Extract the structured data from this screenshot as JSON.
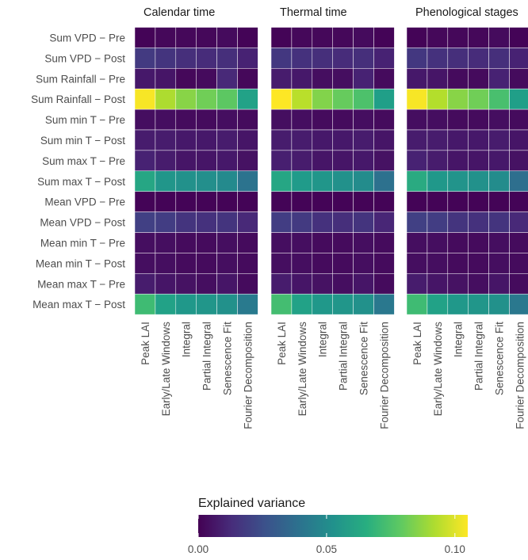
{
  "chart_data": {
    "type": "heatmap",
    "panels": [
      "Calendar time",
      "Thermal time",
      "Phenological stages"
    ],
    "rows": [
      "Sum VPD − Pre",
      "Sum VPD − Post",
      "Sum Rainfall − Pre",
      "Sum Rainfall − Post",
      "Sum min T − Pre",
      "Sum min T − Post",
      "Sum max T − Pre",
      "Sum max T − Post",
      "Mean VPD − Pre",
      "Mean VPD − Post",
      "Mean min T − Pre",
      "Mean min T − Post",
      "Mean max T − Pre",
      "Mean max T − Post"
    ],
    "columns": [
      "Peak LAI",
      "Early/Late Windows",
      "Integral",
      "Partial Integral",
      "Senescence Fit",
      "Fourier Decomposition"
    ],
    "values": [
      [
        [
          0.001,
          0.002,
          0.002,
          0.002,
          0.003,
          0.001
        ],
        [
          0.018,
          0.016,
          0.014,
          0.013,
          0.014,
          0.01
        ],
        [
          0.007,
          0.006,
          0.002,
          0.003,
          0.012,
          0.002
        ],
        [
          0.104,
          0.092,
          0.086,
          0.082,
          0.078,
          0.06
        ],
        [
          0.004,
          0.004,
          0.003,
          0.003,
          0.004,
          0.003
        ],
        [
          0.008,
          0.008,
          0.007,
          0.007,
          0.008,
          0.006
        ],
        [
          0.01,
          0.008,
          0.006,
          0.006,
          0.007,
          0.005
        ],
        [
          0.062,
          0.055,
          0.053,
          0.052,
          0.05,
          0.04
        ],
        [
          0.001,
          0.001,
          0.001,
          0.001,
          0.001,
          0.001
        ],
        [
          0.02,
          0.019,
          0.016,
          0.015,
          0.016,
          0.012
        ],
        [
          0.004,
          0.004,
          0.003,
          0.003,
          0.004,
          0.003
        ],
        [
          0.004,
          0.004,
          0.003,
          0.003,
          0.004,
          0.003
        ],
        [
          0.008,
          0.006,
          0.005,
          0.004,
          0.006,
          0.003
        ],
        [
          0.072,
          0.06,
          0.056,
          0.055,
          0.053,
          0.043
        ]
      ],
      [
        [
          0.001,
          0.002,
          0.002,
          0.002,
          0.003,
          0.001
        ],
        [
          0.017,
          0.015,
          0.014,
          0.013,
          0.014,
          0.01
        ],
        [
          0.008,
          0.007,
          0.004,
          0.004,
          0.01,
          0.003
        ],
        [
          0.106,
          0.094,
          0.085,
          0.08,
          0.075,
          0.059
        ],
        [
          0.004,
          0.004,
          0.003,
          0.003,
          0.004,
          0.003
        ],
        [
          0.008,
          0.008,
          0.007,
          0.007,
          0.008,
          0.006
        ],
        [
          0.009,
          0.008,
          0.006,
          0.006,
          0.007,
          0.005
        ],
        [
          0.062,
          0.057,
          0.055,
          0.053,
          0.051,
          0.039
        ],
        [
          0.001,
          0.001,
          0.001,
          0.001,
          0.001,
          0.001
        ],
        [
          0.019,
          0.018,
          0.015,
          0.014,
          0.016,
          0.011
        ],
        [
          0.004,
          0.004,
          0.003,
          0.003,
          0.004,
          0.003
        ],
        [
          0.004,
          0.004,
          0.003,
          0.003,
          0.004,
          0.003
        ],
        [
          0.008,
          0.006,
          0.005,
          0.004,
          0.006,
          0.003
        ],
        [
          0.073,
          0.06,
          0.056,
          0.055,
          0.053,
          0.042
        ]
      ],
      [
        [
          0.001,
          0.002,
          0.002,
          0.002,
          0.003,
          0.001
        ],
        [
          0.017,
          0.015,
          0.014,
          0.013,
          0.014,
          0.01
        ],
        [
          0.007,
          0.006,
          0.003,
          0.003,
          0.01,
          0.003
        ],
        [
          0.104,
          0.093,
          0.086,
          0.082,
          0.074,
          0.059
        ],
        [
          0.004,
          0.004,
          0.003,
          0.003,
          0.004,
          0.003
        ],
        [
          0.008,
          0.008,
          0.007,
          0.007,
          0.008,
          0.006
        ],
        [
          0.01,
          0.008,
          0.006,
          0.006,
          0.007,
          0.005
        ],
        [
          0.064,
          0.056,
          0.054,
          0.053,
          0.051,
          0.038
        ],
        [
          0.001,
          0.001,
          0.001,
          0.001,
          0.001,
          0.001
        ],
        [
          0.02,
          0.019,
          0.016,
          0.015,
          0.016,
          0.012
        ],
        [
          0.004,
          0.004,
          0.003,
          0.003,
          0.004,
          0.003
        ],
        [
          0.004,
          0.004,
          0.003,
          0.003,
          0.004,
          0.003
        ],
        [
          0.008,
          0.006,
          0.005,
          0.004,
          0.006,
          0.003
        ],
        [
          0.072,
          0.06,
          0.056,
          0.055,
          0.053,
          0.042
        ]
      ]
    ],
    "colorscale": "viridis",
    "color_limits": [
      0,
      0.105
    ],
    "colors": {
      "low": "#440154",
      "mid": "#21908c",
      "high": "#fde725",
      "cell_border": "#ffffff"
    },
    "legend": {
      "title": "Explained variance",
      "ticks": [
        "0.00",
        "0.05",
        "0.10"
      ],
      "tick_values": [
        0,
        0.05,
        0.1
      ],
      "placement": "bottom"
    }
  }
}
